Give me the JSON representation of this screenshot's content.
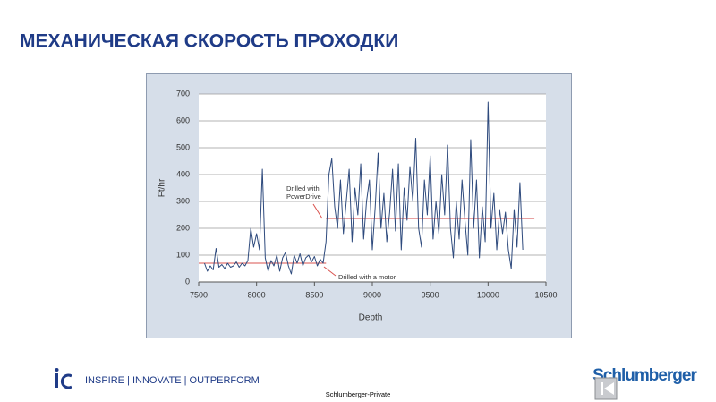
{
  "slide_title": "МЕХАНИЧЕСКАЯ СКОРОСТЬ ПРОХОДКИ",
  "footer": {
    "tagline": "INSPIRE | INNOVATE | OUTPERFORM",
    "classification": "Schlumberger-Private",
    "logo": "Schlumberger"
  },
  "chart_data": {
    "type": "line",
    "x_label": "Depth",
    "y_label": "Ft/hr",
    "xlim": [
      7500,
      10500
    ],
    "xticks": [
      7500,
      8000,
      8500,
      9000,
      9500,
      10000,
      10500
    ],
    "ylim": [
      0,
      700
    ],
    "yticks": [
      0,
      100,
      200,
      300,
      400,
      500,
      600,
      700
    ],
    "grid": true,
    "x": [
      7550,
      7575,
      7600,
      7625,
      7650,
      7675,
      7700,
      7725,
      7750,
      7775,
      7800,
      7825,
      7850,
      7875,
      7900,
      7925,
      7950,
      7975,
      8000,
      8025,
      8050,
      8075,
      8100,
      8125,
      8150,
      8175,
      8200,
      8225,
      8250,
      8275,
      8300,
      8325,
      8350,
      8375,
      8400,
      8425,
      8450,
      8475,
      8500,
      8525,
      8550,
      8575,
      8600,
      8625,
      8650,
      8675,
      8700,
      8725,
      8750,
      8775,
      8800,
      8825,
      8850,
      8875,
      8900,
      8925,
      8950,
      8975,
      9000,
      9025,
      9050,
      9075,
      9100,
      9125,
      9150,
      9175,
      9200,
      9225,
      9250,
      9275,
      9300,
      9325,
      9350,
      9375,
      9400,
      9425,
      9450,
      9475,
      9500,
      9525,
      9550,
      9575,
      9600,
      9625,
      9650,
      9675,
      9700,
      9725,
      9750,
      9775,
      9800,
      9825,
      9850,
      9875,
      9900,
      9925,
      9950,
      9975,
      10000,
      10025,
      10050,
      10075,
      10100,
      10125,
      10150,
      10175,
      10200,
      10225,
      10250,
      10275,
      10300
    ],
    "series": [
      {
        "color": "#2e4a7d",
        "values": [
          70,
          40,
          60,
          45,
          125,
          55,
          65,
          50,
          70,
          55,
          60,
          75,
          55,
          70,
          60,
          80,
          200,
          130,
          180,
          120,
          420,
          90,
          40,
          80,
          60,
          100,
          40,
          90,
          110,
          60,
          30,
          100,
          70,
          105,
          60,
          90,
          100,
          75,
          95,
          60,
          85,
          70,
          150,
          400,
          460,
          280,
          200,
          380,
          180,
          300,
          420,
          150,
          350,
          250,
          440,
          160,
          300,
          380,
          120,
          280,
          480,
          200,
          330,
          150,
          260,
          420,
          190,
          440,
          120,
          350,
          230,
          430,
          300,
          535,
          200,
          130,
          380,
          250,
          470,
          160,
          300,
          180,
          400,
          250,
          510,
          200,
          90,
          300,
          160,
          380,
          230,
          100,
          530,
          200,
          380,
          90,
          280,
          150,
          670,
          200,
          330,
          120,
          270,
          180,
          260,
          120,
          50,
          270,
          130,
          370,
          120
        ]
      }
    ],
    "reference_lines": [
      {
        "x": [
          7500,
          8600
        ],
        "value": 70,
        "color": "#d9534f"
      },
      {
        "x": [
          8600,
          10400
        ],
        "value": 235,
        "color": "#e8a0a0"
      }
    ],
    "annotations": [
      {
        "lines": [
          "Drilled with",
          "PowerDrive"
        ]
      },
      {
        "lines": [
          "Drilled with a motor"
        ]
      }
    ]
  }
}
